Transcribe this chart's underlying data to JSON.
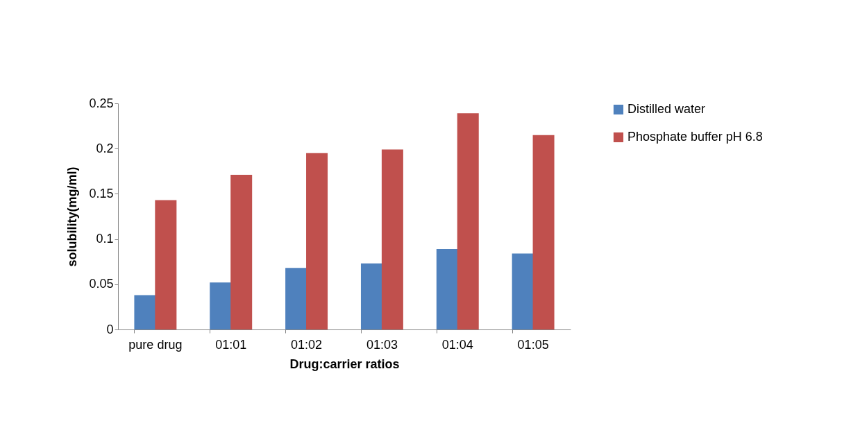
{
  "chart_data": {
    "type": "bar",
    "xlabel": "Drug:carrier ratios",
    "ylabel": "solubility(mg/ml)",
    "categories": [
      "pure drug",
      "01:01",
      "01:02",
      "01:03",
      "01:04",
      "01:05"
    ],
    "series": [
      {
        "name": "Distilled water",
        "color": "#4f81bd",
        "values": [
          0.038,
          0.052,
          0.068,
          0.073,
          0.089,
          0.084
        ]
      },
      {
        "name": "Phosphate buffer pH 6.8",
        "color": "#c0504d",
        "values": [
          0.143,
          0.171,
          0.195,
          0.199,
          0.239,
          0.215
        ]
      }
    ],
    "ylim": [
      0,
      0.25
    ],
    "yticks": [
      0,
      0.05,
      0.1,
      0.15,
      0.2,
      0.25
    ],
    "grid": false,
    "legend": "right"
  }
}
